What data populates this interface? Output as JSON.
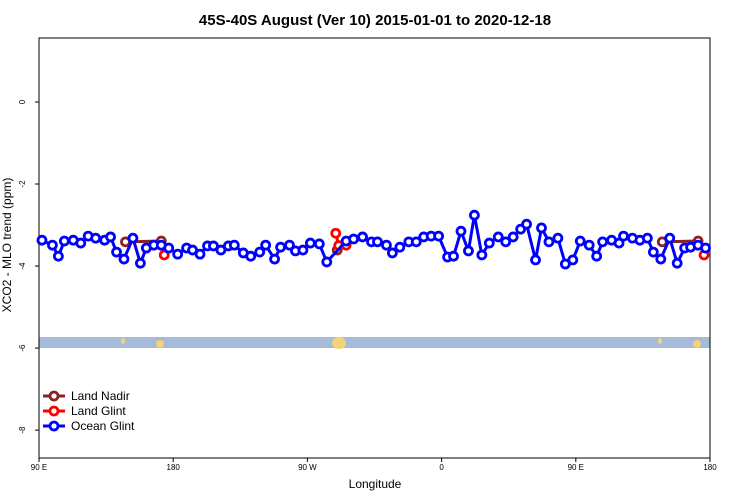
{
  "chart_data": {
    "type": "line",
    "title": "45S-40S August (Ver 10)   2015-01-01 to 2020-12-18",
    "x_label": "Longitude",
    "y_label": "XCO2 - MLO trend (ppm)",
    "xlim": [
      90,
      540
    ],
    "ylim": [
      -8.68,
      1.56
    ],
    "xticks": [
      {
        "value": 90,
        "label": "90 E"
      },
      180,
      {
        "value": 270,
        "label": "90 W"
      },
      {
        "value": 360,
        "label": "0"
      },
      {
        "value": 450,
        "label": "90 E"
      },
      {
        "value": 540,
        "label": "180"
      }
    ],
    "yticks": [
      -8,
      -6,
      -4,
      -2,
      0
    ],
    "legend": "bottom-left",
    "series": [
      {
        "name": "Land Nadir",
        "color": "#8b2323",
        "x": [
          148,
          172,
          290,
          508,
          532
        ],
        "values": [
          -3.41,
          -3.39,
          -3.61,
          -3.41,
          -3.39
        ]
      },
      {
        "name": "Land Glint",
        "color": "#ff0000",
        "x": [
          174,
          289,
          291,
          296,
          536
        ],
        "values": [
          -3.73,
          -3.2,
          -3.5,
          -3.49,
          -3.73
        ]
      },
      {
        "name": "Ocean Glint",
        "color": "#0000ff",
        "x": [
          92,
          99,
          103,
          107,
          113,
          118,
          123,
          128,
          134,
          138,
          142,
          147,
          153,
          158,
          162,
          167,
          172,
          177,
          183,
          189,
          193,
          198,
          203,
          207,
          212,
          217,
          221,
          227,
          232,
          238,
          242,
          248,
          252,
          258,
          262,
          267,
          272,
          278,
          283,
          296,
          301,
          307,
          313,
          317,
          323,
          327,
          332,
          338,
          343,
          348,
          353,
          358,
          364,
          368,
          373,
          378,
          382,
          387,
          392,
          398,
          403,
          408,
          413,
          417,
          423,
          427,
          432,
          438,
          443,
          448,
          453,
          459,
          464,
          468,
          474,
          479,
          482,
          488,
          493,
          498,
          502,
          507,
          513,
          518,
          523,
          527,
          532,
          537
        ],
        "values": [
          -3.37,
          -3.49,
          -3.76,
          -3.39,
          -3.37,
          -3.44,
          -3.27,
          -3.32,
          -3.37,
          -3.29,
          -3.66,
          -3.83,
          -3.32,
          -3.93,
          -3.56,
          -3.49,
          -3.49,
          -3.56,
          -3.71,
          -3.56,
          -3.61,
          -3.71,
          -3.51,
          -3.51,
          -3.61,
          -3.51,
          -3.49,
          -3.68,
          -3.76,
          -3.66,
          -3.49,
          -3.83,
          -3.54,
          -3.49,
          -3.63,
          -3.61,
          -3.44,
          -3.46,
          -3.9,
          -3.39,
          -3.34,
          -3.29,
          -3.41,
          -3.41,
          -3.49,
          -3.68,
          -3.54,
          -3.41,
          -3.41,
          -3.29,
          -3.27,
          -3.27,
          -3.78,
          -3.76,
          -3.15,
          -3.63,
          -2.76,
          -3.73,
          -3.44,
          -3.29,
          -3.41,
          -3.29,
          -3.1,
          -2.98,
          -3.85,
          -3.07,
          -3.41,
          -3.32,
          -3.95,
          -3.85,
          -3.39,
          -3.49,
          -3.76,
          -3.41,
          -3.37,
          -3.44,
          -3.27,
          -3.32,
          -3.37,
          -3.32,
          -3.66,
          -3.83,
          -3.32,
          -3.93,
          -3.56,
          -3.54,
          -3.49,
          -3.56
        ]
      }
    ]
  }
}
